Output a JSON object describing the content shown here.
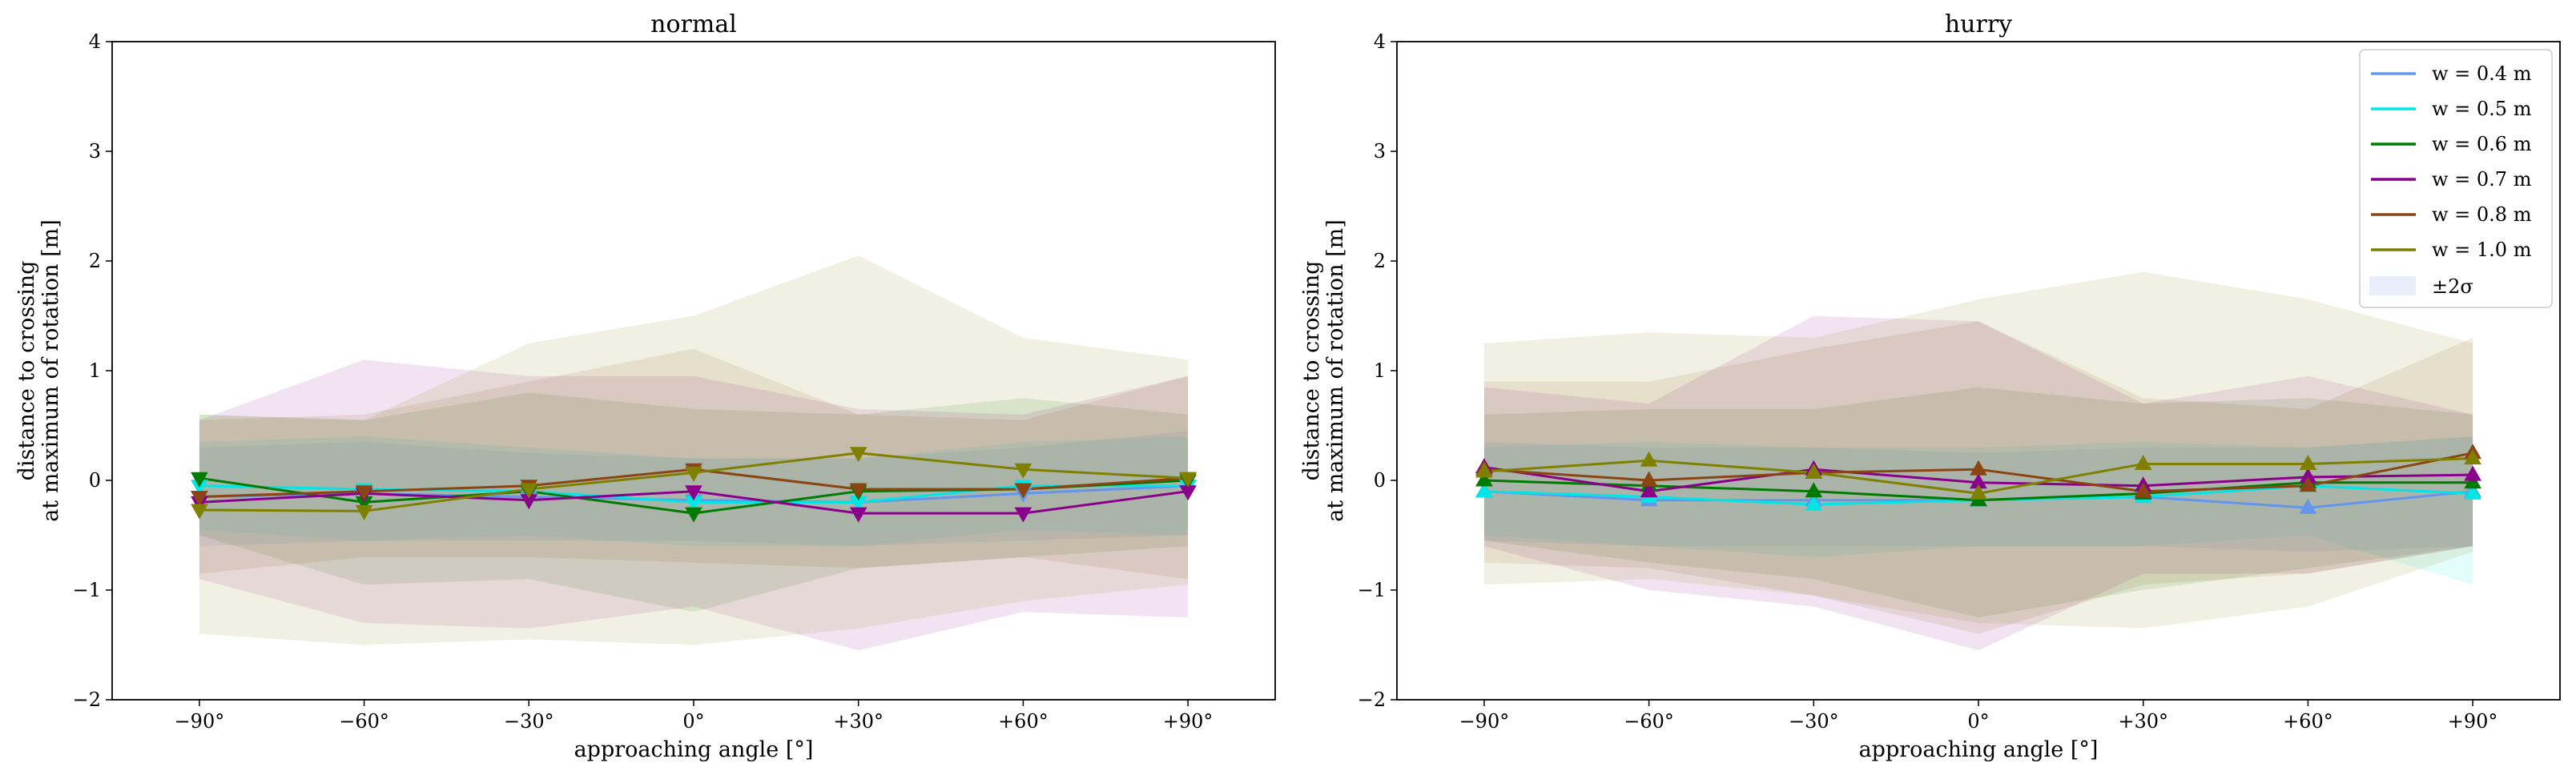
{
  "figure": {
    "name": "distance-to-crossing-figure"
  },
  "colors": {
    "w04": "#6495ED",
    "w05": "#00E5E5",
    "w06": "#007A00",
    "w07": "#8B008B",
    "w08": "#8B4513",
    "w10": "#808000",
    "band_legend": "#E8EEFA"
  },
  "legend": {
    "entries": [
      "w = 0.4 m",
      "w = 0.5 m",
      "w = 0.6 m",
      "w = 0.7 m",
      "w = 0.8 m",
      "w = 1.0 m"
    ],
    "band_label": "±2σ"
  },
  "chart_data": [
    {
      "type": "line",
      "title": "normal",
      "xlabel": "approaching angle [°]",
      "ylabel_line1": "distance to crossing",
      "ylabel_line2": "at maximum of rotation [m]",
      "categories": [
        "−90°",
        "−60°",
        "−30°",
        "0°",
        "+30°",
        "+60°",
        "+90°"
      ],
      "y_ticks": [
        "−2",
        "−1",
        "0",
        "1",
        "2",
        "3",
        "4"
      ],
      "ylim": [
        -2,
        4
      ],
      "marker": "triangle-down",
      "series": [
        {
          "name": "w = 0.4 m",
          "color_key": "w04",
          "values": [
            -0.15,
            -0.12,
            -0.15,
            -0.18,
            -0.2,
            -0.12,
            -0.05
          ],
          "upper": [
            0.3,
            0.35,
            0.25,
            0.2,
            0.2,
            0.3,
            0.45
          ],
          "lower": [
            -0.6,
            -0.55,
            -0.55,
            -0.55,
            -0.6,
            -0.55,
            -0.5
          ]
        },
        {
          "name": "w = 0.5 m",
          "color_key": "w05",
          "values": [
            -0.05,
            -0.08,
            -0.1,
            -0.2,
            -0.2,
            -0.05,
            -0.05
          ],
          "upper": [
            0.35,
            0.4,
            0.3,
            0.2,
            0.2,
            0.35,
            0.4
          ],
          "lower": [
            -0.45,
            -0.55,
            -0.5,
            -0.6,
            -0.6,
            -0.45,
            -0.5
          ]
        },
        {
          "name": "w = 0.6 m",
          "color_key": "w06",
          "values": [
            0.02,
            -0.2,
            -0.1,
            -0.3,
            -0.1,
            -0.08,
            0.0
          ],
          "upper": [
            0.6,
            0.55,
            0.8,
            0.65,
            0.6,
            0.75,
            0.6
          ],
          "lower": [
            -0.5,
            -0.95,
            -0.9,
            -1.2,
            -0.8,
            -0.7,
            -0.6
          ]
        },
        {
          "name": "w = 0.7 m",
          "color_key": "w07",
          "values": [
            -0.2,
            -0.12,
            -0.18,
            -0.1,
            -0.3,
            -0.3,
            -0.1
          ],
          "upper": [
            0.55,
            1.1,
            0.95,
            0.95,
            0.65,
            0.6,
            0.95
          ],
          "lower": [
            -0.9,
            -1.3,
            -1.35,
            -1.15,
            -1.55,
            -1.2,
            -1.25
          ]
        },
        {
          "name": "w = 0.8 m",
          "color_key": "w08",
          "values": [
            -0.15,
            -0.1,
            -0.05,
            0.1,
            -0.08,
            -0.08,
            0.02
          ],
          "upper": [
            0.55,
            0.6,
            0.9,
            1.2,
            0.6,
            0.55,
            0.95
          ],
          "lower": [
            -0.85,
            -0.7,
            -0.7,
            -0.75,
            -0.8,
            -0.7,
            -0.9
          ]
        },
        {
          "name": "w = 1.0 m",
          "color_key": "w10",
          "values": [
            -0.27,
            -0.28,
            -0.08,
            0.07,
            0.25,
            0.1,
            0.02
          ],
          "upper": [
            0.6,
            0.55,
            1.25,
            1.5,
            2.05,
            1.3,
            1.1
          ],
          "lower": [
            -1.4,
            -1.5,
            -1.45,
            -1.5,
            -1.35,
            -1.1,
            -0.95
          ]
        }
      ]
    },
    {
      "type": "line",
      "title": "hurry",
      "xlabel": "approaching angle [°]",
      "ylabel_line1": "distance to crossing",
      "ylabel_line2": "at maximum of rotation [m]",
      "categories": [
        "−90°",
        "−60°",
        "−30°",
        "0°",
        "+30°",
        "+60°",
        "+90°"
      ],
      "y_ticks": [
        "−2",
        "−1",
        "0",
        "1",
        "2",
        "3",
        "4"
      ],
      "ylim": [
        -2,
        4
      ],
      "marker": "triangle-up",
      "series": [
        {
          "name": "w = 0.4 m",
          "color_key": "w04",
          "values": [
            -0.1,
            -0.18,
            -0.18,
            -0.18,
            -0.15,
            -0.25,
            -0.1
          ],
          "upper": [
            0.35,
            0.3,
            0.3,
            0.25,
            0.3,
            0.3,
            0.4
          ],
          "lower": [
            -0.55,
            -0.6,
            -0.6,
            -0.6,
            -0.6,
            -0.65,
            -0.6
          ]
        },
        {
          "name": "w = 0.5 m",
          "color_key": "w05",
          "values": [
            -0.1,
            -0.15,
            -0.22,
            -0.18,
            -0.15,
            -0.05,
            -0.12
          ],
          "upper": [
            0.3,
            0.35,
            0.3,
            0.3,
            0.35,
            0.3,
            0.4
          ],
          "lower": [
            -0.5,
            -0.6,
            -0.7,
            -0.6,
            -0.6,
            -0.5,
            -0.95
          ]
        },
        {
          "name": "w = 0.6 m",
          "color_key": "w06",
          "values": [
            0.0,
            -0.05,
            -0.1,
            -0.18,
            -0.12,
            -0.02,
            -0.02
          ],
          "upper": [
            0.6,
            0.65,
            0.65,
            0.85,
            0.7,
            0.75,
            0.6
          ],
          "lower": [
            -0.55,
            -0.75,
            -0.9,
            -1.25,
            -1.0,
            -0.8,
            -0.6
          ]
        },
        {
          "name": "w = 0.7 m",
          "color_key": "w07",
          "values": [
            0.12,
            -0.1,
            0.1,
            -0.02,
            -0.05,
            0.03,
            0.05
          ],
          "upper": [
            0.85,
            0.7,
            1.5,
            1.45,
            0.7,
            0.95,
            0.6
          ],
          "lower": [
            -0.6,
            -1.0,
            -1.15,
            -1.55,
            -0.85,
            -0.85,
            -0.6
          ]
        },
        {
          "name": "w = 0.8 m",
          "color_key": "w08",
          "values": [
            0.1,
            0.0,
            0.07,
            0.1,
            -0.1,
            -0.05,
            0.25
          ],
          "upper": [
            0.9,
            0.9,
            1.2,
            1.45,
            0.75,
            0.65,
            1.3
          ],
          "lower": [
            -0.75,
            -0.8,
            -1.05,
            -1.4,
            -0.95,
            -0.85,
            -0.6
          ]
        },
        {
          "name": "w = 1.0 m",
          "color_key": "w10",
          "values": [
            0.08,
            0.18,
            0.07,
            -0.12,
            0.15,
            0.15,
            0.2
          ],
          "upper": [
            1.25,
            1.35,
            1.3,
            1.65,
            1.9,
            1.65,
            1.25
          ],
          "lower": [
            -0.95,
            -0.9,
            -1.05,
            -1.3,
            -1.35,
            -1.15,
            -0.65
          ]
        }
      ]
    }
  ]
}
